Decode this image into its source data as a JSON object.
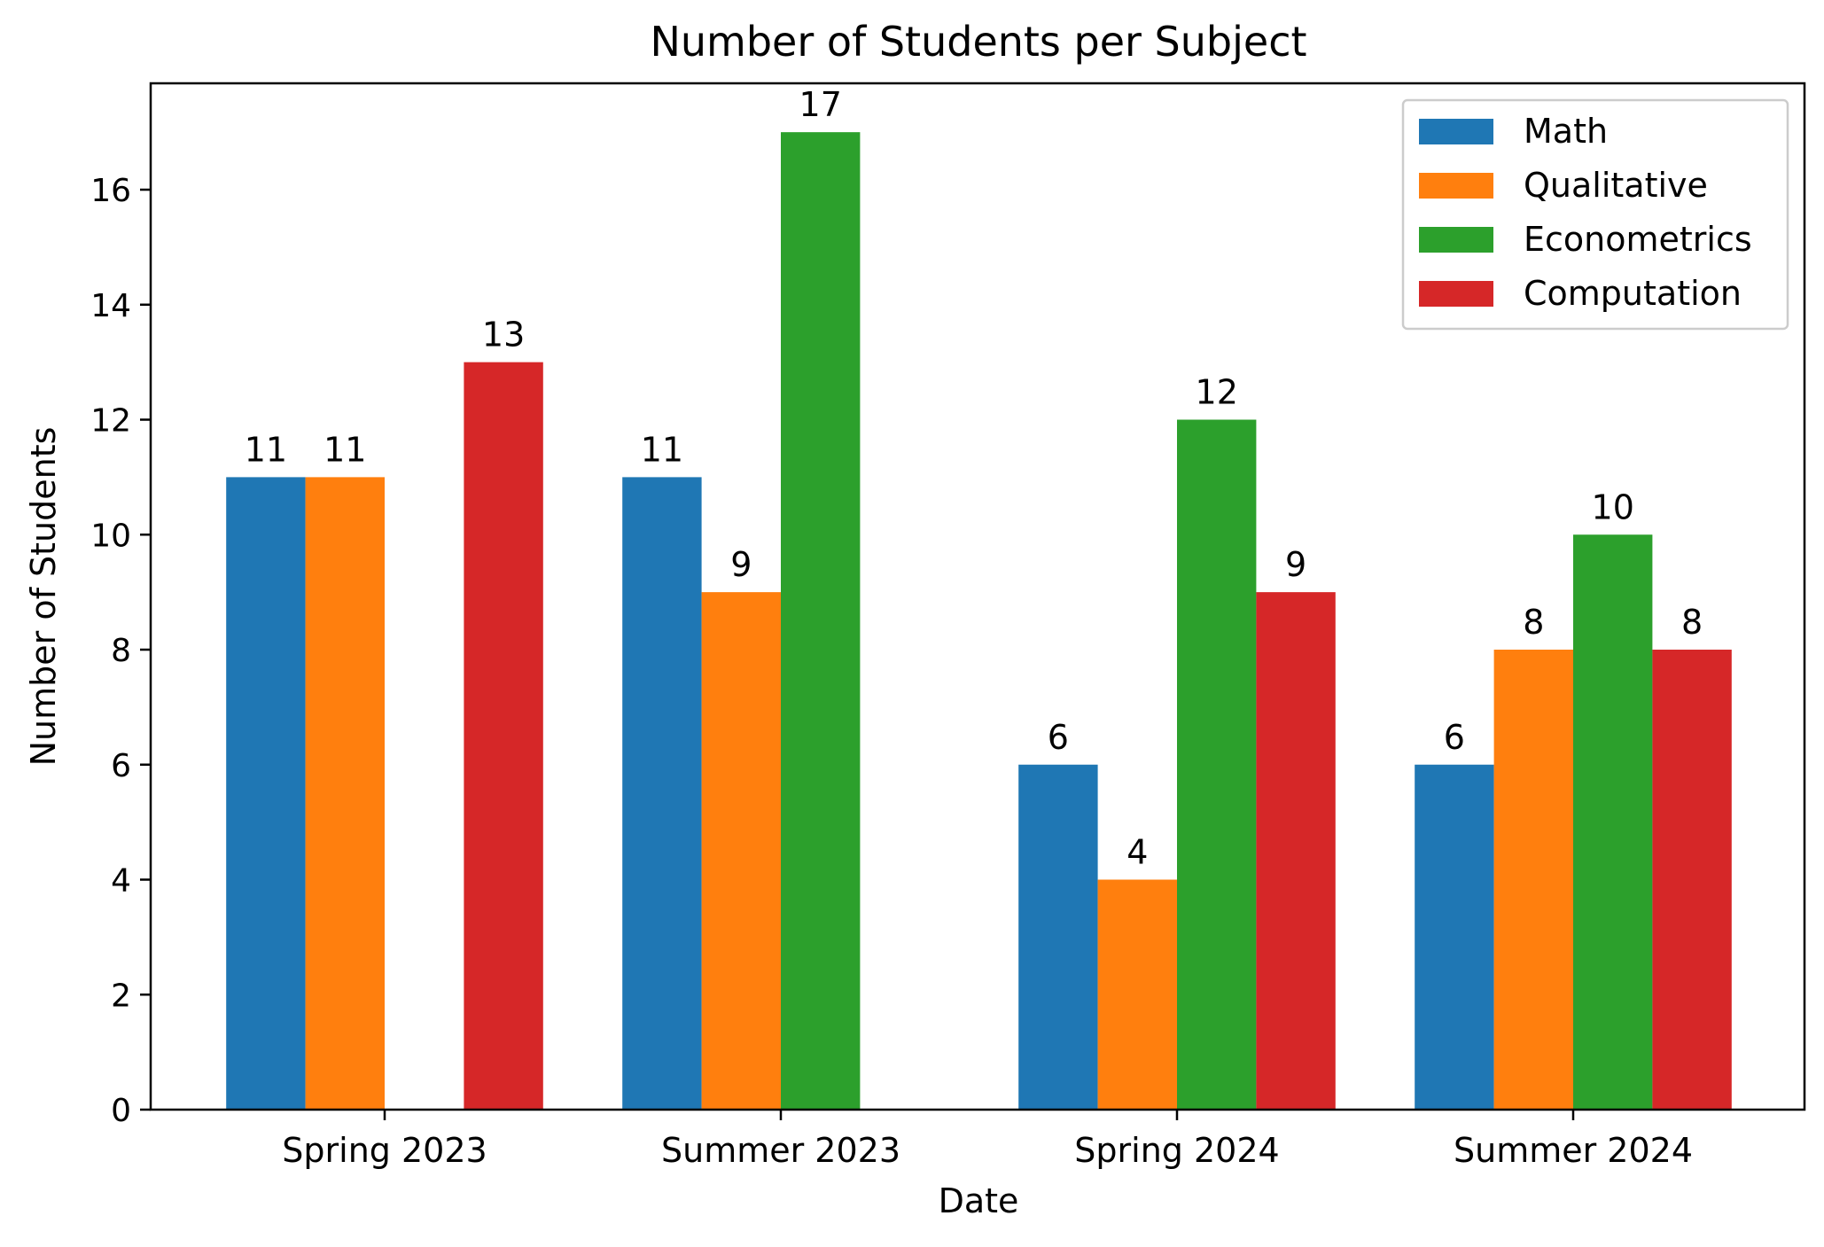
{
  "chart_data": {
    "type": "bar",
    "title": "Number of Students per Subject",
    "xlabel": "Date",
    "ylabel": "Number of Students",
    "categories": [
      "Spring 2023",
      "Summer 2023",
      "Spring 2024",
      "Summer 2024"
    ],
    "series": [
      {
        "name": "Math",
        "color": "#1f77b4",
        "values": [
          11,
          11,
          6,
          6
        ]
      },
      {
        "name": "Qualitative",
        "color": "#ff7f0e",
        "values": [
          11,
          9,
          4,
          8
        ]
      },
      {
        "name": "Econometrics",
        "color": "#2ca02c",
        "values": [
          0,
          17,
          12,
          10
        ]
      },
      {
        "name": "Computation",
        "color": "#d62728",
        "values": [
          13,
          0,
          9,
          8
        ]
      }
    ],
    "ylim": [
      0,
      17.85
    ],
    "yticks": [
      0,
      2,
      4,
      6,
      8,
      10,
      12,
      14,
      16
    ],
    "grid": false,
    "legend_position": "top-right",
    "data_labels": true
  }
}
